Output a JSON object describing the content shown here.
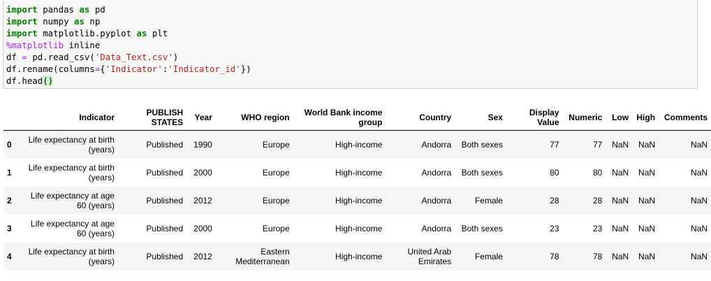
{
  "code_lines": [
    {
      "parts": [
        {
          "t": "import",
          "c": "kw"
        },
        {
          "t": " pandas ",
          "c": "pn"
        },
        {
          "t": "as",
          "c": "kw"
        },
        {
          "t": " pd",
          "c": "pn"
        }
      ]
    },
    {
      "parts": [
        {
          "t": "import",
          "c": "kw"
        },
        {
          "t": " numpy ",
          "c": "pn"
        },
        {
          "t": "as",
          "c": "kw"
        },
        {
          "t": " np",
          "c": "pn"
        }
      ]
    },
    {
      "parts": [
        {
          "t": "import",
          "c": "kw"
        },
        {
          "t": " matplotlib.pyplot ",
          "c": "pn"
        },
        {
          "t": "as",
          "c": "kw"
        },
        {
          "t": " plt",
          "c": "pn"
        }
      ]
    },
    {
      "parts": [
        {
          "t": "%matplotlib",
          "c": "mg"
        },
        {
          "t": " inline",
          "c": "pn"
        }
      ]
    },
    {
      "parts": [
        {
          "t": "df ",
          "c": "pn"
        },
        {
          "t": "=",
          "c": "op"
        },
        {
          "t": " pd.read_csv(",
          "c": "pn"
        },
        {
          "t": "'Data_Text.csv'",
          "c": "str"
        },
        {
          "t": ")",
          "c": "pn"
        }
      ]
    },
    {
      "parts": [
        {
          "t": "df.rename(columns",
          "c": "pn"
        },
        {
          "t": "=",
          "c": "op"
        },
        {
          "t": "{",
          "c": "pn"
        },
        {
          "t": "'Indicator'",
          "c": "str"
        },
        {
          "t": ":",
          "c": "pn"
        },
        {
          "t": "'Indicator_id'",
          "c": "str"
        },
        {
          "t": "})",
          "c": "pn"
        }
      ]
    },
    {
      "parts": [
        {
          "t": "df.head",
          "c": "pn"
        },
        {
          "t": "()",
          "c": "paren-hl"
        }
      ]
    }
  ],
  "table": {
    "index_header": "",
    "columns": [
      "Indicator",
      "PUBLISH STATES",
      "Year",
      "WHO region",
      "World Bank income group",
      "Country",
      "Sex",
      "Display Value",
      "Numeric",
      "Low",
      "High",
      "Comments"
    ],
    "rows": [
      {
        "index": "0",
        "cells": [
          "Life expectancy at birth (years)",
          "Published",
          "1990",
          "Europe",
          "High-income",
          "Andorra",
          "Both sexes",
          "77",
          "77",
          "NaN",
          "NaN",
          "NaN"
        ]
      },
      {
        "index": "1",
        "cells": [
          "Life expectancy at birth (years)",
          "Published",
          "2000",
          "Europe",
          "High-income",
          "Andorra",
          "Both sexes",
          "80",
          "80",
          "NaN",
          "NaN",
          "NaN"
        ]
      },
      {
        "index": "2",
        "cells": [
          "Life expectancy at age 60 (years)",
          "Published",
          "2012",
          "Europe",
          "High-income",
          "Andorra",
          "Female",
          "28",
          "28",
          "NaN",
          "NaN",
          "NaN"
        ]
      },
      {
        "index": "3",
        "cells": [
          "Life expectancy at age 60 (years)",
          "Published",
          "2000",
          "Europe",
          "High-income",
          "Andorra",
          "Both sexes",
          "23",
          "23",
          "NaN",
          "NaN",
          "NaN"
        ]
      },
      {
        "index": "4",
        "cells": [
          "Life expectancy at birth (years)",
          "Published",
          "2012",
          "Eastern Mediterranean",
          "High-income",
          "United Arab Emirates",
          "Female",
          "78",
          "78",
          "NaN",
          "NaN",
          "NaN"
        ]
      }
    ]
  }
}
